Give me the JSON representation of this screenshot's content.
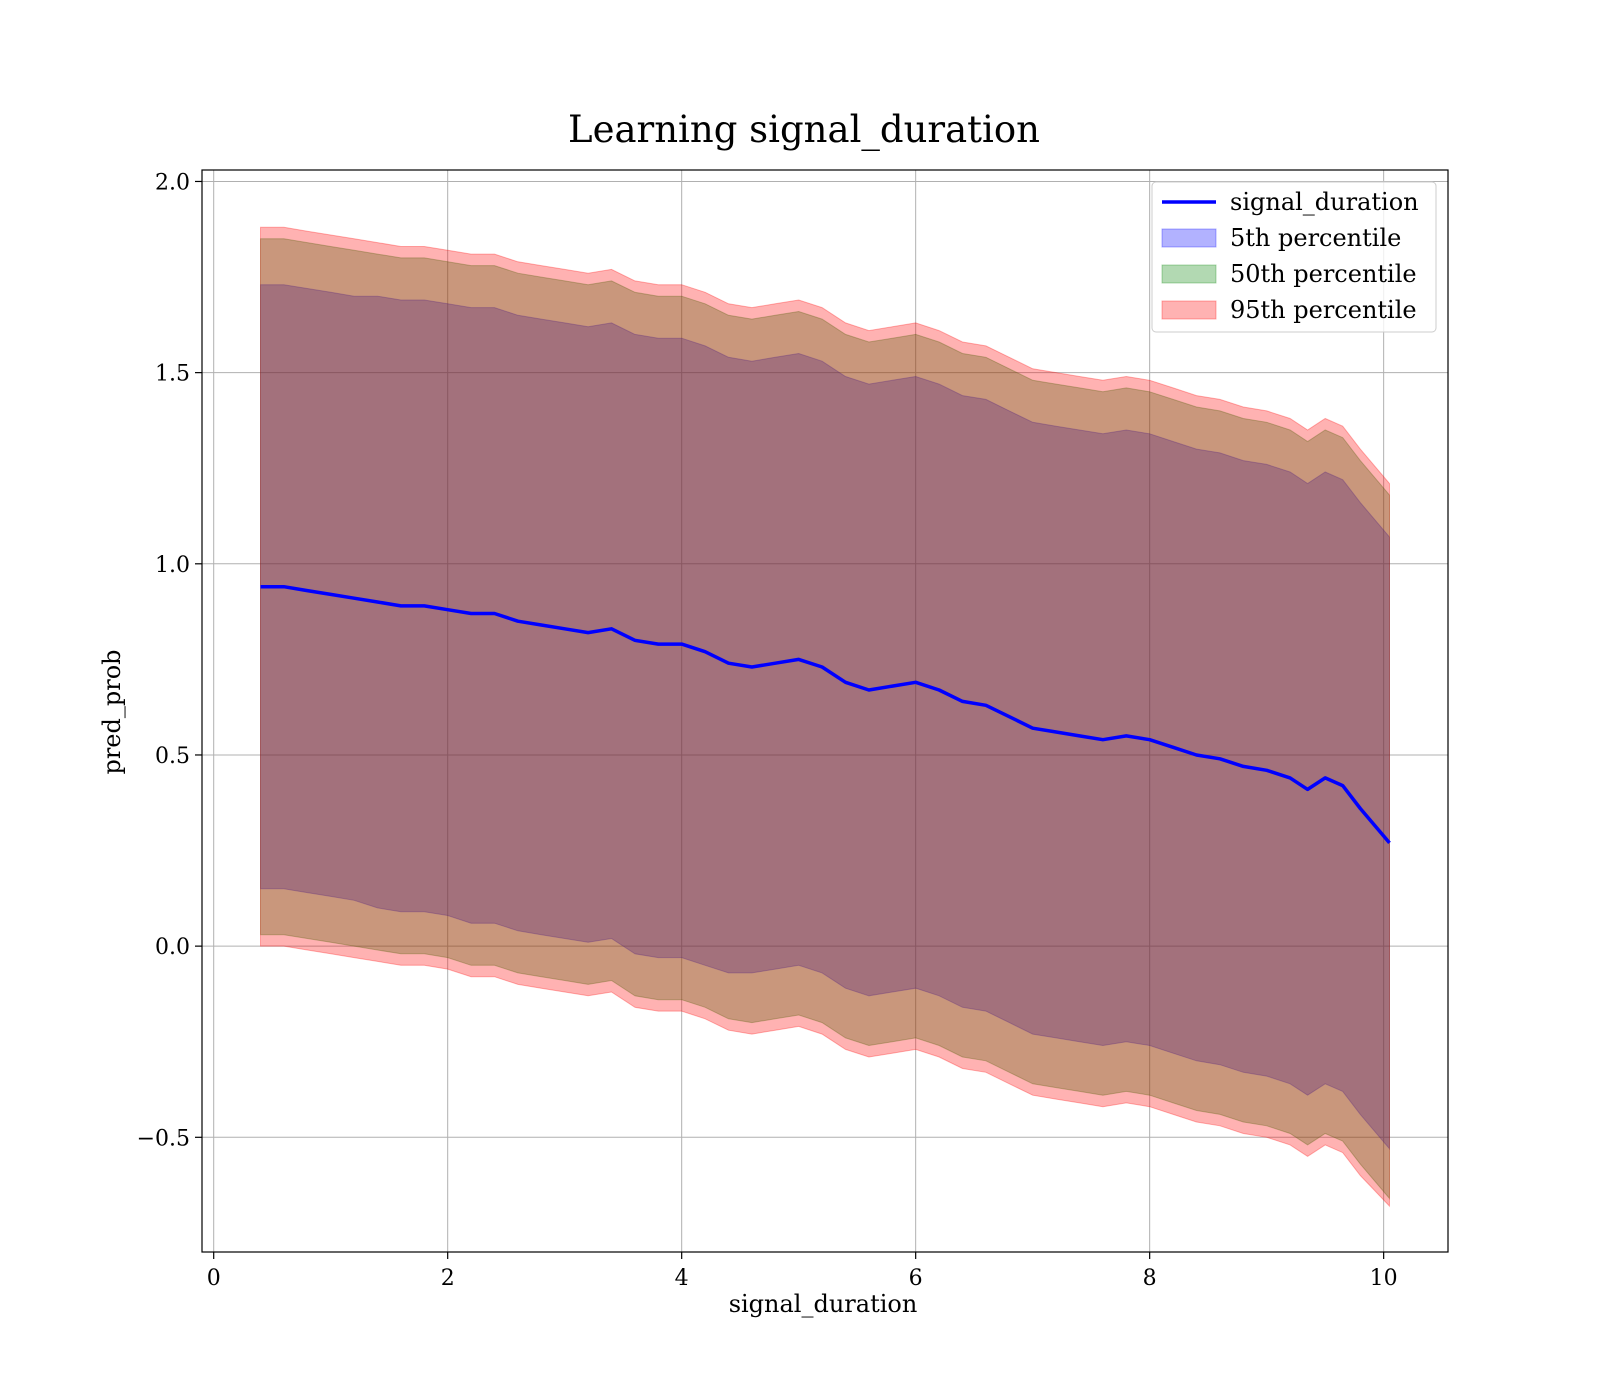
{
  "chart_data": {
    "type": "area",
    "title": "Learning signal_duration",
    "xlabel": "signal_duration",
    "ylabel": "pred_prob",
    "xlim": [
      -0.1,
      10.55
    ],
    "ylim": [
      -0.8,
      2.03
    ],
    "x_ticks": [
      0,
      2,
      4,
      6,
      8,
      10
    ],
    "x_tick_labels": [
      "0",
      "2",
      "4",
      "6",
      "8",
      "10"
    ],
    "y_ticks": [
      -0.5,
      0.0,
      0.5,
      1.0,
      1.5,
      2.0
    ],
    "y_tick_labels": [
      "−0.5",
      "0.0",
      "0.5",
      "1.0",
      "1.5",
      "2.0"
    ],
    "grid": true,
    "legend_position": "top-right",
    "x": [
      0.4,
      0.6,
      0.8,
      1.0,
      1.2,
      1.4,
      1.6,
      1.8,
      2.0,
      2.2,
      2.4,
      2.6,
      2.8,
      3.0,
      3.2,
      3.4,
      3.6,
      3.8,
      4.0,
      4.2,
      4.4,
      4.6,
      4.8,
      5.0,
      5.2,
      5.4,
      5.6,
      5.8,
      6.0,
      6.2,
      6.4,
      6.6,
      6.8,
      7.0,
      7.2,
      7.4,
      7.6,
      7.8,
      8.0,
      8.2,
      8.4,
      8.6,
      8.8,
      9.0,
      9.2,
      9.35,
      9.5,
      9.65,
      9.8,
      10.05
    ],
    "series": [
      {
        "name": "signal_duration",
        "kind": "line",
        "color": "#0000ff",
        "y": [
          0.94,
          0.94,
          0.93,
          0.92,
          0.91,
          0.9,
          0.89,
          0.89,
          0.88,
          0.87,
          0.87,
          0.85,
          0.84,
          0.83,
          0.82,
          0.83,
          0.8,
          0.79,
          0.79,
          0.77,
          0.74,
          0.73,
          0.74,
          0.75,
          0.73,
          0.69,
          0.67,
          0.68,
          0.69,
          0.67,
          0.64,
          0.63,
          0.6,
          0.57,
          0.56,
          0.55,
          0.54,
          0.55,
          0.54,
          0.52,
          0.5,
          0.49,
          0.47,
          0.46,
          0.44,
          0.41,
          0.44,
          0.42,
          0.36,
          0.27
        ]
      },
      {
        "name": "5th percentile",
        "kind": "band",
        "color": "#0000ff",
        "lower": [
          0.15,
          0.15,
          0.14,
          0.13,
          0.12,
          0.1,
          0.09,
          0.09,
          0.08,
          0.06,
          0.06,
          0.04,
          0.03,
          0.02,
          0.01,
          0.02,
          -0.02,
          -0.03,
          -0.03,
          -0.05,
          -0.07,
          -0.07,
          -0.06,
          -0.05,
          -0.07,
          -0.11,
          -0.13,
          -0.12,
          -0.11,
          -0.13,
          -0.16,
          -0.17,
          -0.2,
          -0.23,
          -0.24,
          -0.25,
          -0.26,
          -0.25,
          -0.26,
          -0.28,
          -0.3,
          -0.31,
          -0.33,
          -0.34,
          -0.36,
          -0.39,
          -0.36,
          -0.38,
          -0.44,
          -0.53
        ],
        "upper": [
          1.73,
          1.73,
          1.72,
          1.71,
          1.7,
          1.7,
          1.69,
          1.69,
          1.68,
          1.67,
          1.67,
          1.65,
          1.64,
          1.63,
          1.62,
          1.63,
          1.6,
          1.59,
          1.59,
          1.57,
          1.54,
          1.53,
          1.54,
          1.55,
          1.53,
          1.49,
          1.47,
          1.48,
          1.49,
          1.47,
          1.44,
          1.43,
          1.4,
          1.37,
          1.36,
          1.35,
          1.34,
          1.35,
          1.34,
          1.32,
          1.3,
          1.29,
          1.27,
          1.26,
          1.24,
          1.21,
          1.24,
          1.22,
          1.16,
          1.07
        ]
      },
      {
        "name": "50th percentile",
        "kind": "band",
        "color": "#008000",
        "lower": [
          0.03,
          0.03,
          0.02,
          0.01,
          0.0,
          -0.01,
          -0.02,
          -0.02,
          -0.03,
          -0.05,
          -0.05,
          -0.07,
          -0.08,
          -0.09,
          -0.1,
          -0.09,
          -0.13,
          -0.14,
          -0.14,
          -0.16,
          -0.19,
          -0.2,
          -0.19,
          -0.18,
          -0.2,
          -0.24,
          -0.26,
          -0.25,
          -0.24,
          -0.26,
          -0.29,
          -0.3,
          -0.33,
          -0.36,
          -0.37,
          -0.38,
          -0.39,
          -0.38,
          -0.39,
          -0.41,
          -0.43,
          -0.44,
          -0.46,
          -0.47,
          -0.49,
          -0.52,
          -0.49,
          -0.51,
          -0.57,
          -0.66
        ],
        "upper": [
          1.85,
          1.85,
          1.84,
          1.83,
          1.82,
          1.81,
          1.8,
          1.8,
          1.79,
          1.78,
          1.78,
          1.76,
          1.75,
          1.74,
          1.73,
          1.74,
          1.71,
          1.7,
          1.7,
          1.68,
          1.65,
          1.64,
          1.65,
          1.66,
          1.64,
          1.6,
          1.58,
          1.59,
          1.6,
          1.58,
          1.55,
          1.54,
          1.51,
          1.48,
          1.47,
          1.46,
          1.45,
          1.46,
          1.45,
          1.43,
          1.41,
          1.4,
          1.38,
          1.37,
          1.35,
          1.32,
          1.35,
          1.33,
          1.27,
          1.18
        ]
      },
      {
        "name": "95th percentile",
        "kind": "band",
        "color": "#ff0000",
        "lower": [
          0.0,
          0.0,
          -0.01,
          -0.02,
          -0.03,
          -0.04,
          -0.05,
          -0.05,
          -0.06,
          -0.08,
          -0.08,
          -0.1,
          -0.11,
          -0.12,
          -0.13,
          -0.12,
          -0.16,
          -0.17,
          -0.17,
          -0.19,
          -0.22,
          -0.23,
          -0.22,
          -0.21,
          -0.23,
          -0.27,
          -0.29,
          -0.28,
          -0.27,
          -0.29,
          -0.32,
          -0.33,
          -0.36,
          -0.39,
          -0.4,
          -0.41,
          -0.42,
          -0.41,
          -0.42,
          -0.44,
          -0.46,
          -0.47,
          -0.49,
          -0.5,
          -0.52,
          -0.55,
          -0.52,
          -0.54,
          -0.6,
          -0.68
        ],
        "upper": [
          1.88,
          1.88,
          1.87,
          1.86,
          1.85,
          1.84,
          1.83,
          1.83,
          1.82,
          1.81,
          1.81,
          1.79,
          1.78,
          1.77,
          1.76,
          1.77,
          1.74,
          1.73,
          1.73,
          1.71,
          1.68,
          1.67,
          1.68,
          1.69,
          1.67,
          1.63,
          1.61,
          1.62,
          1.63,
          1.61,
          1.58,
          1.57,
          1.54,
          1.51,
          1.5,
          1.49,
          1.48,
          1.49,
          1.48,
          1.46,
          1.44,
          1.43,
          1.41,
          1.4,
          1.38,
          1.35,
          1.38,
          1.36,
          1.3,
          1.21
        ]
      }
    ]
  }
}
